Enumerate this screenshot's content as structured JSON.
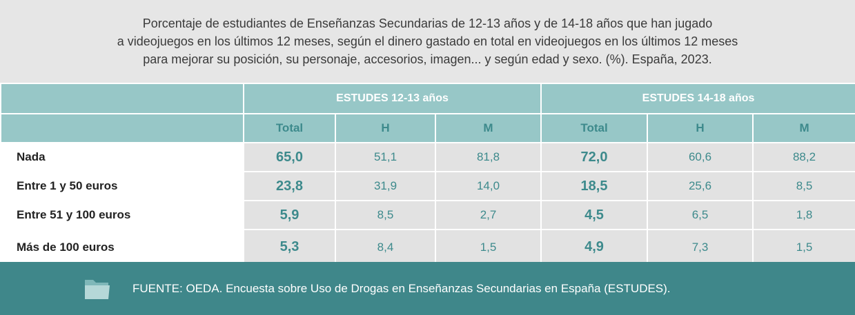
{
  "title": "Porcentaje de estudiantes de Enseñanzas Secundarias de 12-13 años y de 14-18 años que han jugado\na videojuegos en los últimos 12 meses, según el dinero gastado en total en videojuegos en los últimos 12 meses\npara mejorar su posición, su personaje, accesorios, imagen... y según edad y sexo. (%). España, 2023.",
  "table": {
    "groups": [
      "ESTUDES 12-13 años",
      "ESTUDES 14-18 años"
    ],
    "subheaders": [
      "Total",
      "H",
      "M",
      "Total",
      "H",
      "M"
    ],
    "rows": [
      {
        "label": "Nada",
        "values": [
          "65,0",
          "51,1",
          "81,8",
          "72,0",
          "60,6",
          "88,2"
        ]
      },
      {
        "label": "Entre 1 y 50 euros",
        "values": [
          "23,8",
          "31,9",
          "14,0",
          "18,5",
          "25,6",
          "8,5"
        ]
      },
      {
        "label": "Entre 51 y 100 euros",
        "values": [
          "5,9",
          "8,5",
          "2,7",
          "4,5",
          "6,5",
          "1,8"
        ]
      },
      {
        "label": "Más de 100 euros",
        "values": [
          "5,3",
          "8,4",
          "1,5",
          "4,9",
          "7,3",
          "1,5"
        ]
      }
    ]
  },
  "footer": {
    "icon": "folder-icon",
    "text": "FUENTE: OEDA. Encuesta sobre Uso de Drogas en Enseñanzas Secundarias en España (ESTUDES)."
  },
  "colors": {
    "header_bg": "#97c7c7",
    "accent": "#3d8a8c",
    "footer_bg": "#3f878a",
    "cell_bg": "#e2e2e2"
  }
}
